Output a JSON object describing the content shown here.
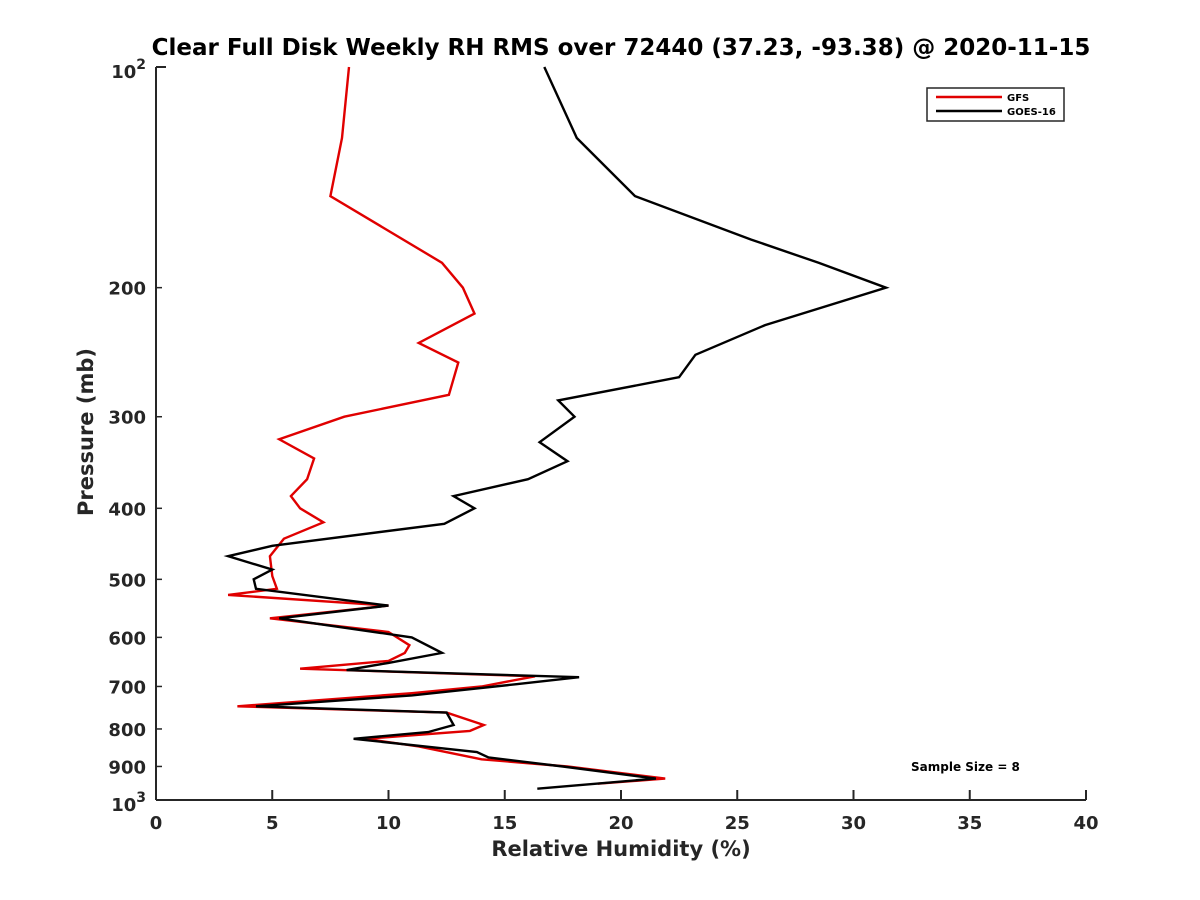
{
  "chart_data": {
    "type": "line",
    "title": "Clear Full Disk Weekly RH RMS over 72440 (37.23, -93.38) @ 2020-11-15",
    "xlabel": "Relative Humidity (%)",
    "ylabel": "Pressure (mb)",
    "xlim": [
      0,
      40
    ],
    "ylim": [
      100,
      1000
    ],
    "y_scale": "log",
    "y_reversed": true,
    "x_ticks": [
      "0",
      "5",
      "10",
      "15",
      "20",
      "25",
      "30",
      "35",
      "40"
    ],
    "x_tick_values": [
      0,
      5,
      10,
      15,
      20,
      25,
      30,
      35,
      40
    ],
    "y_ticks": [
      {
        "value": 200,
        "label": "200"
      },
      {
        "value": 300,
        "label": "300"
      },
      {
        "value": 400,
        "label": "400"
      },
      {
        "value": 500,
        "label": "500"
      },
      {
        "value": 600,
        "label": "600"
      },
      {
        "value": 700,
        "label": "700"
      },
      {
        "value": 800,
        "label": "800"
      },
      {
        "value": 900,
        "label": "900"
      }
    ],
    "y_tick_100": {
      "base": "10",
      "exp": "2"
    },
    "y_tick_1000": {
      "base": "10",
      "exp": "3"
    },
    "legend_position": "top-right",
    "annotation": "Sample Size = 8",
    "series": [
      {
        "name": "GFS",
        "color": "#e00000",
        "points": [
          [
            8.3,
            100
          ],
          [
            8.0,
            125
          ],
          [
            7.5,
            150
          ],
          [
            12.3,
            185
          ],
          [
            13.2,
            200
          ],
          [
            13.7,
            217
          ],
          [
            11.3,
            238
          ],
          [
            13.0,
            253
          ],
          [
            12.6,
            280
          ],
          [
            8.1,
            300
          ],
          [
            5.3,
            322
          ],
          [
            6.8,
            342
          ],
          [
            6.5,
            365
          ],
          [
            5.8,
            385
          ],
          [
            6.2,
            400
          ],
          [
            7.2,
            418
          ],
          [
            5.5,
            440
          ],
          [
            4.9,
            465
          ],
          [
            5.0,
            495
          ],
          [
            5.2,
            515
          ],
          [
            3.1,
            525
          ],
          [
            10.0,
            543
          ],
          [
            4.9,
            565
          ],
          [
            10.0,
            590
          ],
          [
            10.9,
            615
          ],
          [
            10.7,
            630
          ],
          [
            10.0,
            646
          ],
          [
            6.2,
            662
          ],
          [
            16.3,
            678
          ],
          [
            14.0,
            700
          ],
          [
            11.0,
            715
          ],
          [
            3.5,
            745
          ],
          [
            12.5,
            760
          ],
          [
            14.1,
            790
          ],
          [
            13.5,
            805
          ],
          [
            9.0,
            825
          ],
          [
            11.3,
            845
          ],
          [
            14.0,
            880
          ],
          [
            17.7,
            900
          ],
          [
            21.9,
            935
          ],
          [
            19.0,
            950
          ]
        ]
      },
      {
        "name": "GOES-16",
        "color": "#000000",
        "points": [
          [
            16.7,
            100
          ],
          [
            18.1,
            125
          ],
          [
            20.6,
            150
          ],
          [
            25.6,
            172
          ],
          [
            28.5,
            185
          ],
          [
            31.4,
            200
          ],
          [
            26.2,
            225
          ],
          [
            23.2,
            247
          ],
          [
            22.5,
            265
          ],
          [
            17.3,
            285
          ],
          [
            18.0,
            300
          ],
          [
            16.5,
            325
          ],
          [
            17.7,
            345
          ],
          [
            16.0,
            365
          ],
          [
            12.8,
            385
          ],
          [
            13.7,
            400
          ],
          [
            12.4,
            420
          ],
          [
            5.0,
            450
          ],
          [
            3.1,
            465
          ],
          [
            5.0,
            485
          ],
          [
            4.2,
            500
          ],
          [
            4.3,
            515
          ],
          [
            10.0,
            543
          ],
          [
            5.3,
            565
          ],
          [
            11.0,
            600
          ],
          [
            12.3,
            630
          ],
          [
            10.0,
            650
          ],
          [
            8.2,
            665
          ],
          [
            18.2,
            680
          ],
          [
            15.5,
            695
          ],
          [
            11.0,
            720
          ],
          [
            4.3,
            745
          ],
          [
            12.5,
            760
          ],
          [
            12.8,
            790
          ],
          [
            11.7,
            808
          ],
          [
            8.5,
            825
          ],
          [
            13.8,
            860
          ],
          [
            14.3,
            875
          ],
          [
            17.5,
            900
          ],
          [
            21.5,
            935
          ],
          [
            16.4,
            965
          ]
        ]
      }
    ]
  }
}
